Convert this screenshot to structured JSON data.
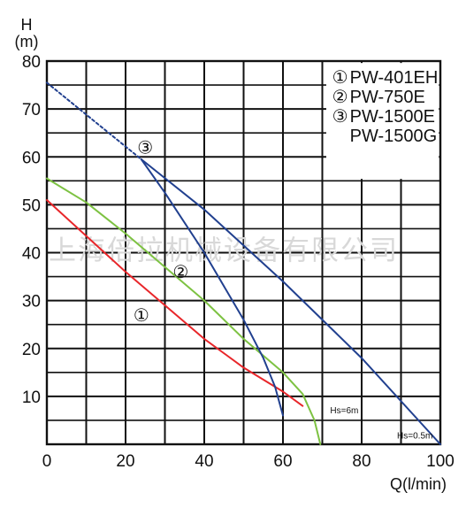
{
  "chart_data": {
    "type": "line",
    "title": "",
    "ylabel": "H",
    "ylabel_unit": "(m)",
    "xlabel": "Q(l/min)",
    "xlim": [
      0,
      100
    ],
    "ylim": [
      0,
      80
    ],
    "grid": true,
    "x_ticks": [
      0,
      20,
      40,
      60,
      80,
      100
    ],
    "y_ticks": [
      10,
      20,
      30,
      40,
      50,
      60,
      70,
      80
    ],
    "x_minor_step": 10,
    "y_minor_step": 5,
    "watermark": "上海倍拉机械设备有限公司",
    "legend_position": "top-right",
    "legend": [
      {
        "marker": "①",
        "text": "PW-401EH"
      },
      {
        "marker": "②",
        "text": "PW-750E"
      },
      {
        "marker": "③",
        "text": "PW-1500E"
      },
      {
        "marker": "",
        "text": "PW-1500G"
      }
    ],
    "annotations": [
      {
        "text": "Hs=6m",
        "x": 72,
        "y": 6.5
      },
      {
        "text": "Hs=0.5m",
        "x": 89,
        "y": 1.2
      }
    ],
    "series": [
      {
        "marker": "①",
        "color": "#e8262a",
        "label_at": [
          24,
          27
        ],
        "points": [
          [
            0,
            51
          ],
          [
            10,
            43.5
          ],
          [
            20,
            36
          ],
          [
            30,
            29
          ],
          [
            40,
            22
          ],
          [
            50,
            16
          ],
          [
            60,
            11
          ],
          [
            65,
            8
          ]
        ]
      },
      {
        "marker": "②",
        "color": "#7dc242",
        "label_at": [
          34,
          36
        ],
        "points": [
          [
            0,
            55.5
          ],
          [
            10,
            50.5
          ],
          [
            20,
            44
          ],
          [
            30,
            37
          ],
          [
            40,
            30
          ],
          [
            50,
            22
          ],
          [
            60,
            15
          ],
          [
            65,
            10.5
          ],
          [
            68,
            5
          ],
          [
            69.5,
            0
          ]
        ]
      },
      {
        "marker": "③",
        "color": "#21408f",
        "label_at": [
          25,
          62
        ],
        "dashed_points": [
          [
            0,
            75.5
          ],
          [
            24,
            59.5
          ]
        ],
        "branches": [
          {
            "name": "Hs=6m",
            "points": [
              [
                24,
                59.5
              ],
              [
                30,
                52.5
              ],
              [
                40,
                40
              ],
              [
                50,
                26
              ],
              [
                55,
                18
              ],
              [
                58,
                12
              ],
              [
                60,
                6
              ]
            ]
          },
          {
            "name": "Hs=0.5m",
            "points": [
              [
                24,
                59.5
              ],
              [
                40,
                49
              ],
              [
                60,
                34
              ],
              [
                80,
                18
              ],
              [
                100,
                0
              ]
            ]
          }
        ]
      }
    ]
  }
}
